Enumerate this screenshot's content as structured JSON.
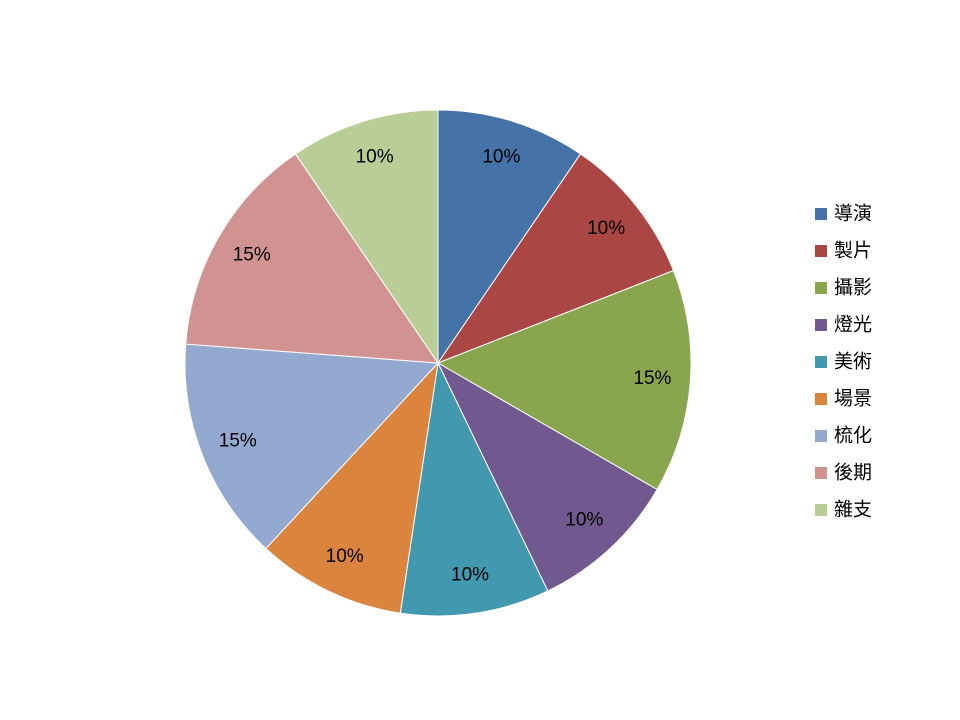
{
  "chart_data": {
    "type": "pie",
    "categories": [
      "導演",
      "製片",
      "攝影",
      "燈光",
      "美術",
      "場景",
      "梳化",
      "後期",
      "雜支"
    ],
    "values": [
      10,
      10,
      15,
      10,
      10,
      10,
      15,
      15,
      10
    ],
    "value_labels": [
      "10%",
      "10%",
      "15%",
      "10%",
      "10%",
      "10%",
      "15%",
      "15%",
      "10%"
    ],
    "colors": [
      "#4572A7",
      "#AA4643",
      "#89A54E",
      "#71588F",
      "#4198AF",
      "#DB843D",
      "#93A9CF",
      "#D19392",
      "#B9CD96"
    ],
    "legend": "right"
  }
}
